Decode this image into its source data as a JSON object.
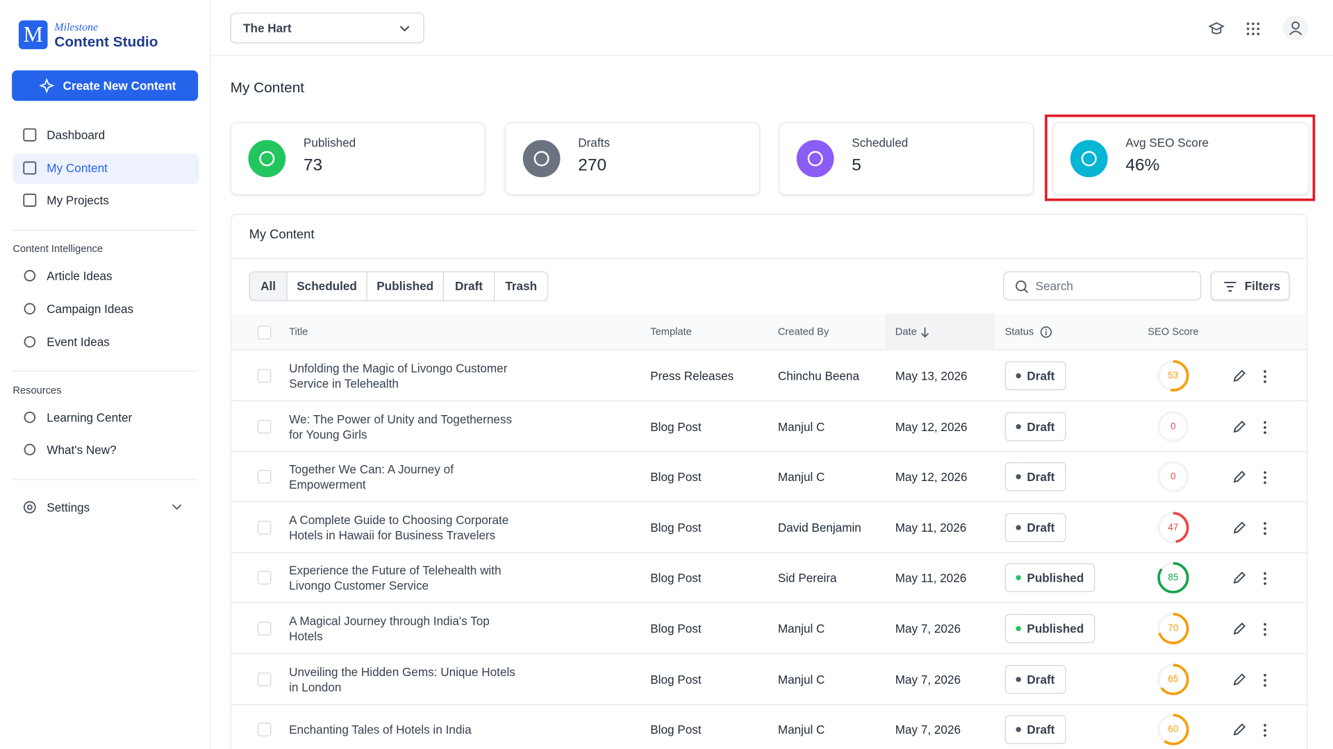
{
  "brand": {
    "top": "Milestone",
    "name": "Content Studio"
  },
  "create_button": "Create New Content",
  "nav": {
    "main": [
      "Dashboard",
      "My Content",
      "My Projects"
    ],
    "sections": [
      {
        "title": "Content Intelligence",
        "items": [
          "Article Ideas",
          "Campaign Ideas",
          "Event Ideas"
        ]
      },
      {
        "title": "Resources",
        "items": [
          "Learning Center",
          "What's New?"
        ]
      }
    ],
    "settings": "Settings"
  },
  "header": {
    "property": "The Hart"
  },
  "page_title": "My Content",
  "stats": [
    {
      "label": "Published",
      "value": 73,
      "color": "#22c55e"
    },
    {
      "label": "Drafts",
      "value": 270,
      "color": "#6b7280"
    },
    {
      "label": "Scheduled",
      "value": 5,
      "color": "#8b5cf6"
    },
    {
      "label": "Avg SEO Score",
      "value": "46%",
      "color": "#06b6d4"
    }
  ],
  "table": {
    "title": "My Content",
    "tabs": [
      "All",
      "Scheduled",
      "Published",
      "Draft",
      "Trash"
    ],
    "search_placeholder": "Search",
    "filters": "Filters",
    "columns": [
      "Title",
      "Template",
      "Created By",
      "Date",
      "Status",
      "SEO Score"
    ],
    "rows": [
      {
        "title": "Unfolding the Magic of Livongo Customer Service in Telehealth",
        "template": "Press Releases",
        "created_by": "Chinchu Beena",
        "date": "May 13, 2026",
        "status": "Draft",
        "seo_score": 53,
        "seo_color": "#f59e0b"
      },
      {
        "title": "We: The Power of Unity and Togetherness for Young Girls",
        "template": "Blog Post",
        "created_by": "Manjul C",
        "date": "May 12, 2026",
        "status": "Draft",
        "seo_score": 0,
        "seo_color": "#ef4444"
      },
      {
        "title": "Together We Can: A Journey of Empowerment",
        "template": "Blog Post",
        "created_by": "Manjul C",
        "date": "May 12, 2026",
        "status": "Draft",
        "seo_score": 0,
        "seo_color": "#ef4444"
      },
      {
        "title": "A Complete Guide to Choosing Corporate Hotels in Hawaii for Business Travelers",
        "template": "Blog Post",
        "created_by": "David Benjamin",
        "date": "May 11, 2026",
        "status": "Draft",
        "seo_score": 47,
        "seo_color": "#ef4444"
      },
      {
        "title": "Experience the Future of Telehealth with Livongo Customer Service",
        "template": "Blog Post",
        "created_by": "Sid Pereira",
        "date": "May 11, 2026",
        "status": "Published",
        "seo_score": 85,
        "seo_color": "#16a34a"
      },
      {
        "title": "A Magical Journey through India's Top Hotels",
        "template": "Blog Post",
        "created_by": "Manjul C",
        "date": "May 7, 2026",
        "status": "Published",
        "seo_score": 70,
        "seo_color": "#f59e0b"
      },
      {
        "title": "Unveiling the Hidden Gems: Unique Hotels in London",
        "template": "Blog Post",
        "created_by": "Manjul C",
        "date": "May 7, 2026",
        "status": "Draft",
        "seo_score": 65,
        "seo_color": "#f59e0b"
      },
      {
        "title": "Enchanting Tales of Hotels in India",
        "template": "Blog Post",
        "created_by": "Manjul C",
        "date": "May 7, 2026",
        "status": "Draft",
        "seo_score": 60,
        "seo_color": "#f59e0b"
      }
    ]
  }
}
